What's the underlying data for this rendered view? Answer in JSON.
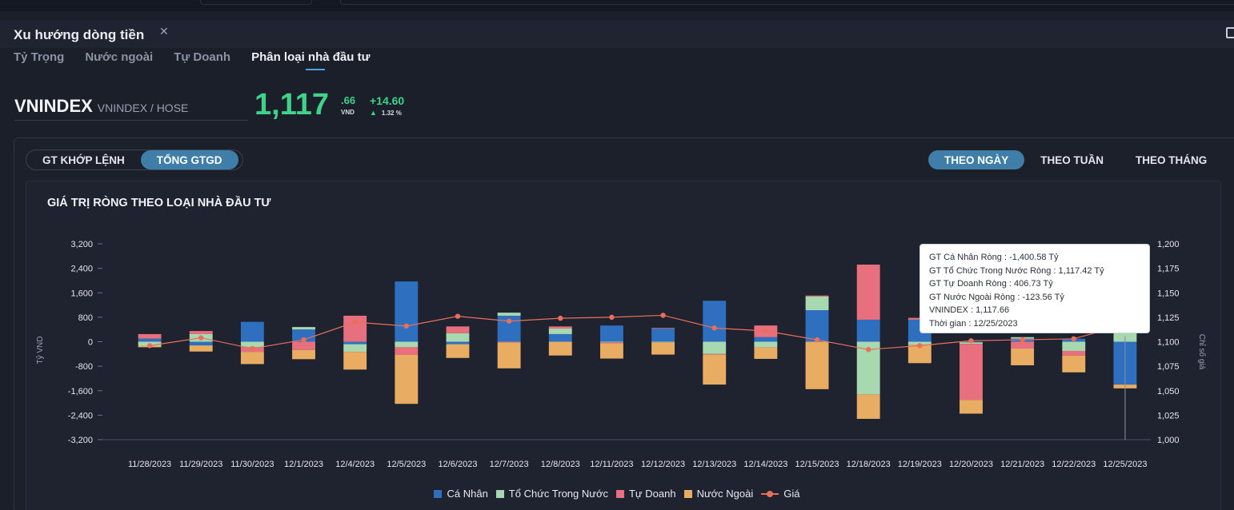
{
  "panel": {
    "title": "Xu hướng dòng tiền"
  },
  "subtabs": [
    {
      "label": "Tỷ Trọng"
    },
    {
      "label": "Nước ngoài"
    },
    {
      "label": "Tự Doanh"
    },
    {
      "label": "Phân loại nhà đầu tư"
    }
  ],
  "ticker": {
    "symbol": "VNINDEX",
    "exchange": "VNINDEX / HOSE",
    "price_int": "1,117",
    "price_dec": ".66",
    "currency": "VND",
    "change": "+14.60",
    "change_pct": "1.32 %"
  },
  "value_toggle": [
    "GT KHỚP LỆNH",
    "TỔNG GTGD"
  ],
  "period_toggle": [
    "THEO NGÀY",
    "THEO TUẦN",
    "THEO THÁNG"
  ],
  "tooltip": {
    "lines": [
      "GT Cá Nhân Ròng  : -1,400.58 Tỷ",
      "GT Tổ Chức Trong Nước Ròng : 1,117.42 Tỷ",
      "GT Tự Doanh Ròng : 406.73 Tỷ",
      "GT Nước Ngoài Ròng : -123.56 Tỷ",
      "VNINDEX : 1,117.66",
      "Thời gian : 12/25/2023"
    ]
  },
  "colors": {
    "ca_nhan": "#2f6fc0",
    "to_chuc": "#a8d8b0",
    "tu_doanh": "#e8707e",
    "nuoc_ngoai": "#e9ac63",
    "gia": "#e8705a"
  },
  "chart_data": {
    "type": "bar",
    "stacked": true,
    "title": "GIÁ TRỊ RÒNG THEO LOẠI NHÀ ĐẦU TƯ",
    "ylabel": "Tỷ VND",
    "y2label": "Chỉ số giá",
    "ylim": [
      -3200,
      3200
    ],
    "y2lim": [
      1000,
      1200
    ],
    "yticks": [
      "3,200",
      "2,400",
      "1,600",
      "800",
      "0",
      "-800",
      "-1,600",
      "-2,400",
      "-3,200"
    ],
    "y2ticks": [
      "1,200",
      "1,175",
      "1,150",
      "1,125",
      "1,100",
      "1,075",
      "1,050",
      "1,025",
      "1,000"
    ],
    "categories": [
      "11/28/2023",
      "11/29/2023",
      "11/30/2023",
      "12/1/2023",
      "12/4/2023",
      "12/5/2023",
      "12/6/2023",
      "12/7/2023",
      "12/8/2023",
      "12/11/2023",
      "12/12/2023",
      "12/13/2023",
      "12/14/2023",
      "12/15/2023",
      "12/18/2023",
      "12/19/2023",
      "12/20/2023",
      "12/21/2023",
      "12/22/2023",
      "12/25/2023"
    ],
    "series": [
      {
        "name": "Cá Nhân",
        "values": [
          100,
          -120,
          650,
          400,
          -80,
          1970,
          -80,
          850,
          250,
          530,
          430,
          1340,
          150,
          1030,
          720,
          720,
          -20,
          100,
          100,
          -1400.58
        ]
      },
      {
        "name": "Tổ Chức Trong Nước",
        "values": [
          -130,
          250,
          -180,
          80,
          -250,
          -180,
          280,
          100,
          180,
          -20,
          -20,
          -400,
          -180,
          450,
          -1720,
          -100,
          -50,
          50,
          -300,
          1117.42
        ]
      },
      {
        "name": "Tự Doanh",
        "values": [
          150,
          100,
          -150,
          -270,
          850,
          -250,
          220,
          -20,
          70,
          -30,
          20,
          -20,
          380,
          30,
          1800,
          60,
          -1830,
          -220,
          -150,
          406.73
        ]
      },
      {
        "name": "Nước Ngoài",
        "values": [
          -50,
          -200,
          -400,
          -300,
          -580,
          -1600,
          -450,
          -850,
          -450,
          -500,
          -400,
          -980,
          -380,
          -1550,
          -800,
          -600,
          -450,
          -550,
          -550,
          -123.56
        ]
      },
      {
        "name": "Giá",
        "type": "line",
        "axis": "right",
        "values": [
          1096,
          1104,
          1093,
          1102,
          1120,
          1116,
          1126,
          1121,
          1124,
          1125,
          1127,
          1114,
          1111,
          1102,
          1092,
          1096,
          1101,
          1102,
          1103,
          1117.66
        ]
      }
    ],
    "legend": "bottom-center",
    "grid": false
  }
}
